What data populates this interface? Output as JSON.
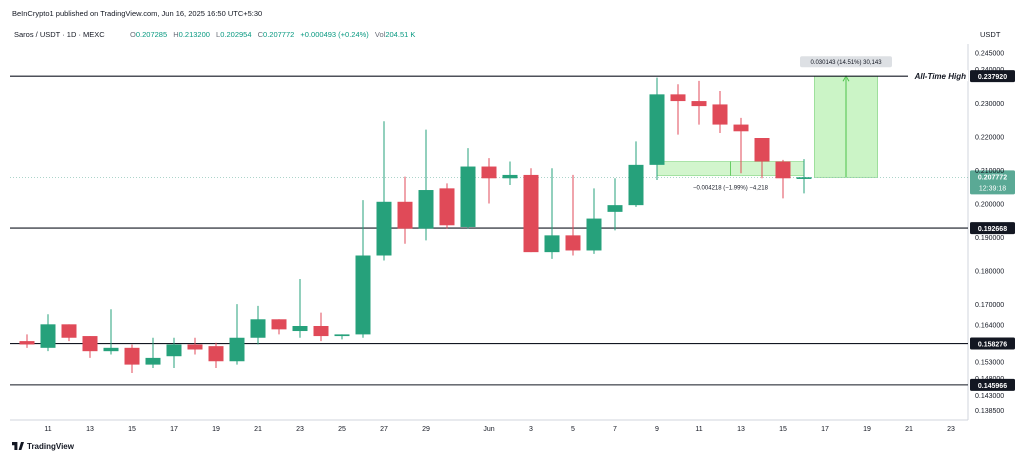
{
  "header": {
    "published": "BeInCrypto1 published on TradingView.com, Jun 16, 2025 16:50 UTC+5:30"
  },
  "legend": {
    "symbol": "Saros / USDT · 1D · MEXC",
    "o_label": "O",
    "o_value": "0.207285",
    "h_label": "H",
    "h_value": "0.213200",
    "l_label": "L",
    "l_value": "0.202954",
    "c_label": "C",
    "c_value": "0.207772",
    "change": "+0.000493 (+0.24%)",
    "vol_label": "Vol",
    "vol_value": "204.51 K"
  },
  "footer": {
    "brand": "TradingView"
  },
  "colors": {
    "up": "#26a17b",
    "down": "#e04a58",
    "level": "#131722",
    "measure_fill": "#bff2b8",
    "measure_line": "#4cc24a",
    "price_tag": "#5aa995"
  },
  "chart_data": {
    "type": "candlestick",
    "currency": "USDT",
    "ylim": [
      0.1355,
      0.2475
    ],
    "y_ticks": [
      {
        "value": 0.245,
        "label": "0.245000"
      },
      {
        "value": 0.24,
        "label": "0.240000"
      },
      {
        "value": 0.23,
        "label": "0.230000"
      },
      {
        "value": 0.22,
        "label": "0.220000"
      },
      {
        "value": 0.21,
        "label": "0.210000"
      },
      {
        "value": 0.2,
        "label": "0.200000"
      },
      {
        "value": 0.19,
        "label": "0.190000"
      },
      {
        "value": 0.18,
        "label": "0.180000"
      },
      {
        "value": 0.17,
        "label": "0.170000"
      },
      {
        "value": 0.164,
        "label": "0.164000"
      },
      {
        "value": 0.153,
        "label": "0.153000"
      },
      {
        "value": 0.148,
        "label": "0.148000"
      },
      {
        "value": 0.143,
        "label": "0.143000"
      },
      {
        "value": 0.1385,
        "label": "0.138500"
      }
    ],
    "x_ticks": [
      {
        "x": 1,
        "label": "11"
      },
      {
        "x": 3,
        "label": "13"
      },
      {
        "x": 5,
        "label": "15"
      },
      {
        "x": 7,
        "label": "17"
      },
      {
        "x": 9,
        "label": "19"
      },
      {
        "x": 11,
        "label": "21"
      },
      {
        "x": 13,
        "label": "23"
      },
      {
        "x": 15,
        "label": "25"
      },
      {
        "x": 17,
        "label": "27"
      },
      {
        "x": 19,
        "label": "29"
      },
      {
        "x": 22,
        "label": "Jun"
      },
      {
        "x": 24,
        "label": "3"
      },
      {
        "x": 26,
        "label": "5"
      },
      {
        "x": 28,
        "label": "7"
      },
      {
        "x": 30,
        "label": "9"
      },
      {
        "x": 32,
        "label": "11"
      },
      {
        "x": 34,
        "label": "13"
      },
      {
        "x": 36,
        "label": "15"
      },
      {
        "x": 38,
        "label": "17"
      },
      {
        "x": 40,
        "label": "19"
      },
      {
        "x": 42,
        "label": "21"
      },
      {
        "x": 44,
        "label": "23"
      }
    ],
    "candles": [
      {
        "x": 0,
        "o": 0.159,
        "h": 0.161,
        "l": 0.157,
        "c": 0.158
      },
      {
        "x": 1,
        "o": 0.157,
        "h": 0.167,
        "l": 0.156,
        "c": 0.164
      },
      {
        "x": 2,
        "o": 0.164,
        "h": 0.164,
        "l": 0.159,
        "c": 0.16
      },
      {
        "x": 3,
        "o": 0.1605,
        "h": 0.1605,
        "l": 0.154,
        "c": 0.156
      },
      {
        "x": 4,
        "o": 0.156,
        "h": 0.1685,
        "l": 0.155,
        "c": 0.157
      },
      {
        "x": 5,
        "o": 0.157,
        "h": 0.158,
        "l": 0.1495,
        "c": 0.152
      },
      {
        "x": 6,
        "o": 0.152,
        "h": 0.16,
        "l": 0.151,
        "c": 0.154
      },
      {
        "x": 7,
        "o": 0.1545,
        "h": 0.16,
        "l": 0.151,
        "c": 0.158
      },
      {
        "x": 8,
        "o": 0.158,
        "h": 0.16,
        "l": 0.155,
        "c": 0.1565
      },
      {
        "x": 9,
        "o": 0.1575,
        "h": 0.1585,
        "l": 0.151,
        "c": 0.153
      },
      {
        "x": 10,
        "o": 0.153,
        "h": 0.17,
        "l": 0.152,
        "c": 0.16
      },
      {
        "x": 11,
        "o": 0.16,
        "h": 0.1695,
        "l": 0.158,
        "c": 0.1655
      },
      {
        "x": 12,
        "o": 0.1655,
        "h": 0.1655,
        "l": 0.161,
        "c": 0.1625
      },
      {
        "x": 13,
        "o": 0.162,
        "h": 0.1775,
        "l": 0.16,
        "c": 0.1635
      },
      {
        "x": 14,
        "o": 0.1635,
        "h": 0.1675,
        "l": 0.159,
        "c": 0.1605
      },
      {
        "x": 15,
        "o": 0.1605,
        "h": 0.161,
        "l": 0.1595,
        "c": 0.161
      },
      {
        "x": 16,
        "o": 0.161,
        "h": 0.201,
        "l": 0.16,
        "c": 0.1845
      },
      {
        "x": 17,
        "o": 0.1845,
        "h": 0.2245,
        "l": 0.183,
        "c": 0.2005
      },
      {
        "x": 18,
        "o": 0.2005,
        "h": 0.208,
        "l": 0.188,
        "c": 0.1925
      },
      {
        "x": 19,
        "o": 0.1925,
        "h": 0.222,
        "l": 0.189,
        "c": 0.204
      },
      {
        "x": 20,
        "o": 0.2045,
        "h": 0.206,
        "l": 0.1925,
        "c": 0.1935
      },
      {
        "x": 21,
        "o": 0.193,
        "h": 0.2165,
        "l": 0.1925,
        "c": 0.211
      },
      {
        "x": 22,
        "o": 0.211,
        "h": 0.2135,
        "l": 0.2,
        "c": 0.2075
      },
      {
        "x": 23,
        "o": 0.2075,
        "h": 0.2125,
        "l": 0.2055,
        "c": 0.2085
      },
      {
        "x": 24,
        "o": 0.2085,
        "h": 0.2105,
        "l": 0.1855,
        "c": 0.1855
      },
      {
        "x": 25,
        "o": 0.1855,
        "h": 0.2105,
        "l": 0.1835,
        "c": 0.1905
      },
      {
        "x": 26,
        "o": 0.1905,
        "h": 0.2085,
        "l": 0.1845,
        "c": 0.186
      },
      {
        "x": 27,
        "o": 0.186,
        "h": 0.2045,
        "l": 0.185,
        "c": 0.1955
      },
      {
        "x": 28,
        "o": 0.1975,
        "h": 0.2075,
        "l": 0.192,
        "c": 0.1995
      },
      {
        "x": 29,
        "o": 0.1995,
        "h": 0.2185,
        "l": 0.199,
        "c": 0.2115
      },
      {
        "x": 30,
        "o": 0.2115,
        "h": 0.2375,
        "l": 0.207,
        "c": 0.2325
      },
      {
        "x": 31,
        "o": 0.2325,
        "h": 0.2355,
        "l": 0.2205,
        "c": 0.2305
      },
      {
        "x": 32,
        "o": 0.2305,
        "h": 0.2365,
        "l": 0.2235,
        "c": 0.229
      },
      {
        "x": 33,
        "o": 0.2295,
        "h": 0.2335,
        "l": 0.221,
        "c": 0.2235
      },
      {
        "x": 34,
        "o": 0.2235,
        "h": 0.2255,
        "l": 0.209,
        "c": 0.2215
      },
      {
        "x": 35,
        "o": 0.2195,
        "h": 0.219,
        "l": 0.2075,
        "c": 0.2125
      },
      {
        "x": 36,
        "o": 0.2125,
        "h": 0.213,
        "l": 0.2015,
        "c": 0.2075
      },
      {
        "x": 37,
        "o": 0.2073,
        "h": 0.2132,
        "l": 0.203,
        "c": 0.2078
      }
    ],
    "levels": [
      {
        "value": 0.23792,
        "label": "0.237920",
        "note": "All-Time High"
      },
      {
        "value": 0.192668,
        "label": "0.192668"
      },
      {
        "value": 0.158276,
        "label": "0.158276"
      },
      {
        "value": 0.145966,
        "label": "0.145966"
      }
    ],
    "last_price": {
      "value": 0.207772,
      "label": "0.207772",
      "countdown": "12:39:18"
    },
    "measure_up": {
      "x_from": 37.5,
      "x_to": 40.5,
      "y_from": 0.2078,
      "y_to": 0.2379,
      "label": "0.030143 (14.51%) 30,143"
    },
    "measure_down": {
      "x_from": 30,
      "x_to": 37,
      "y_from": 0.2125,
      "y_to": 0.2083,
      "label": "−0.004218 (−1.99%) −4,218"
    }
  }
}
